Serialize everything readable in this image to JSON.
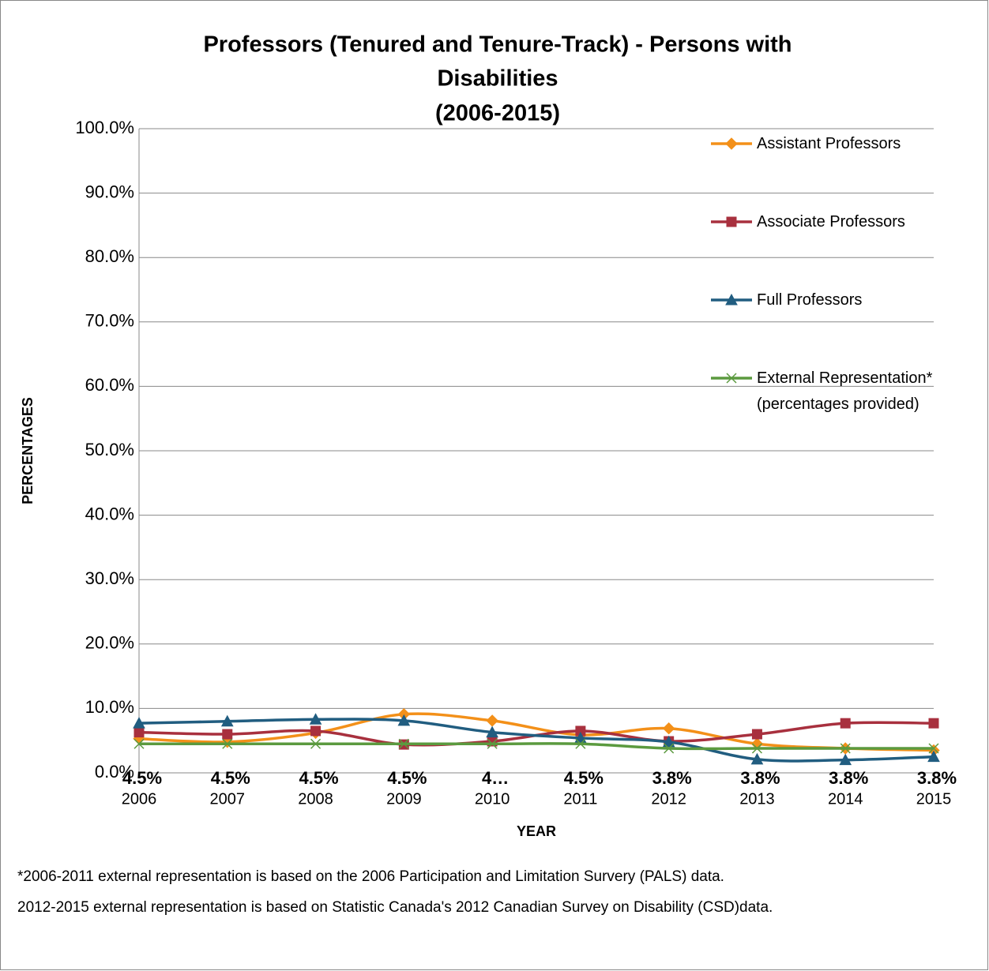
{
  "chart_data": {
    "type": "line",
    "title": [
      "Professors (Tenured and Tenure-Track) - Persons with",
      "Disabilities",
      "(2006-2015)"
    ],
    "y_label": "PERCENTAGES",
    "x_label": "YEAR",
    "categories": [
      "2006",
      "2007",
      "2008",
      "2009",
      "2010",
      "2011",
      "2012",
      "2013",
      "2014",
      "2015"
    ],
    "series": [
      {
        "name": "Assistant Professors",
        "color": "#f39019",
        "marker": "diamond",
        "values": [
          5.3,
          4.8,
          6.2,
          9.1,
          8.1,
          5.9,
          6.9,
          4.5,
          3.8,
          3.5
        ]
      },
      {
        "name": "Associate Professors",
        "color": "#a8303e",
        "marker": "square",
        "values": [
          6.3,
          6.0,
          6.5,
          4.4,
          4.9,
          6.5,
          4.9,
          6.0,
          7.7,
          7.7
        ]
      },
      {
        "name": "Full Professors",
        "color": "#215d80",
        "marker": "triangle",
        "values": [
          7.7,
          8.0,
          8.3,
          8.1,
          6.3,
          5.4,
          4.8,
          2.1,
          2.0,
          2.5
        ]
      },
      {
        "name": "External Representation* (percentages provided)",
        "color": "#5b9a3f",
        "marker": "x",
        "values": [
          4.5,
          4.5,
          4.5,
          4.5,
          4.5,
          4.5,
          3.8,
          3.8,
          3.8,
          3.8
        ],
        "value_labels": [
          "4.5%",
          "4.5%",
          "4.5%",
          "4.5%",
          "4…",
          "4.5%",
          "3.8%",
          "3.8%",
          "3.8%",
          "3.8%"
        ]
      }
    ],
    "ylim": [
      0,
      100
    ],
    "yticks": [
      {
        "value": 0,
        "label": "0.0%"
      },
      {
        "value": 10,
        "label": "10.0%"
      },
      {
        "value": 20,
        "label": "20.0%"
      },
      {
        "value": 30,
        "label": "30.0%"
      },
      {
        "value": 40,
        "label": "40.0%"
      },
      {
        "value": 50,
        "label": "50.0%"
      },
      {
        "value": 60,
        "label": "60.0%"
      },
      {
        "value": 70,
        "label": "70.0%"
      },
      {
        "value": 80,
        "label": "80.0%"
      },
      {
        "value": 90,
        "label": "90.0%"
      },
      {
        "value": 100,
        "label": "100.0%"
      }
    ],
    "grid": true,
    "legend": "right",
    "footnote": [
      "*2006-2011 external representation is based on the  2006 Participation and Limitation Survery (PALS) data.",
      "2012-2015 external representation is based on Statistic Canada's 2012 Canadian Survey on Disability (CSD)data."
    ]
  }
}
